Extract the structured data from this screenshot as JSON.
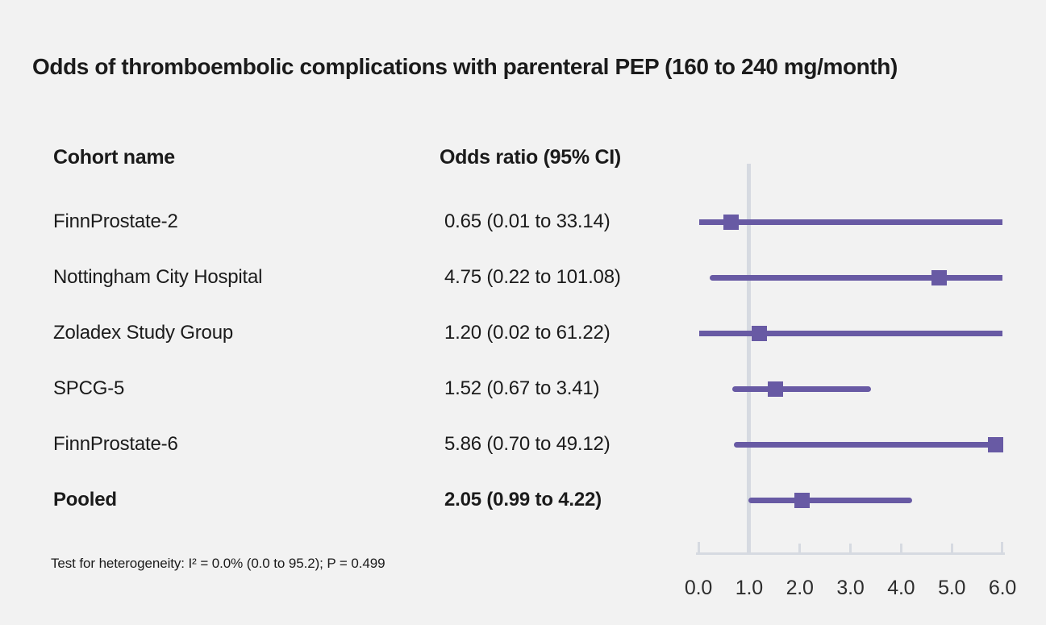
{
  "title": "Odds of thromboembolic complications with parenteral PEP (160 to 240 mg/month)",
  "columns": {
    "cohort": "Cohort name",
    "odds_ratio": "Odds ratio (95% CI)"
  },
  "footnote": "Test for heterogeneity: I² = 0.0% (0.0 to 95.2); P = 0.499",
  "colors": {
    "background": "#f2f2f2",
    "marker_purple": "#685aa4",
    "axis_gray": "#d6dae1",
    "text": "#1b1b1b"
  },
  "chart_data": {
    "type": "scatter",
    "subtype": "forest-plot",
    "title": "Odds of thromboembolic complications with parenteral PEP (160 to 240 mg/month)",
    "xlabel": "",
    "ylabel": "",
    "xlim": [
      0.0,
      6.0
    ],
    "x_ticks": [
      0.0,
      1.0,
      2.0,
      3.0,
      4.0,
      5.0,
      6.0
    ],
    "x_tick_labels": [
      "0.0",
      "1.0",
      "2.0",
      "3.0",
      "4.0",
      "5.0",
      "6.0"
    ],
    "reference_line_x": 1.0,
    "grid": false,
    "legend_position": "none",
    "rows": [
      {
        "label": "FinnProstate-2",
        "or_text": "0.65 (0.01 to 33.14)",
        "estimate": 0.65,
        "ci_low": 0.01,
        "ci_high": 33.14,
        "bold": false
      },
      {
        "label": "Nottingham City Hospital",
        "or_text": "4.75 (0.22 to 101.08)",
        "estimate": 4.75,
        "ci_low": 0.22,
        "ci_high": 101.08,
        "bold": false
      },
      {
        "label": "Zoladex Study Group",
        "or_text": "1.20 (0.02 to 61.22)",
        "estimate": 1.2,
        "ci_low": 0.02,
        "ci_high": 61.22,
        "bold": false
      },
      {
        "label": "SPCG-5",
        "or_text": "1.52 (0.67 to 3.41)",
        "estimate": 1.52,
        "ci_low": 0.67,
        "ci_high": 3.41,
        "bold": false
      },
      {
        "label": "FinnProstate-6",
        "or_text": "5.86 (0.70 to 49.12)",
        "estimate": 5.86,
        "ci_low": 0.7,
        "ci_high": 49.12,
        "bold": false
      },
      {
        "label": "Pooled",
        "or_text": "2.05 (0.99 to 4.22)",
        "estimate": 2.05,
        "ci_low": 0.99,
        "ci_high": 4.22,
        "bold": true
      }
    ]
  }
}
